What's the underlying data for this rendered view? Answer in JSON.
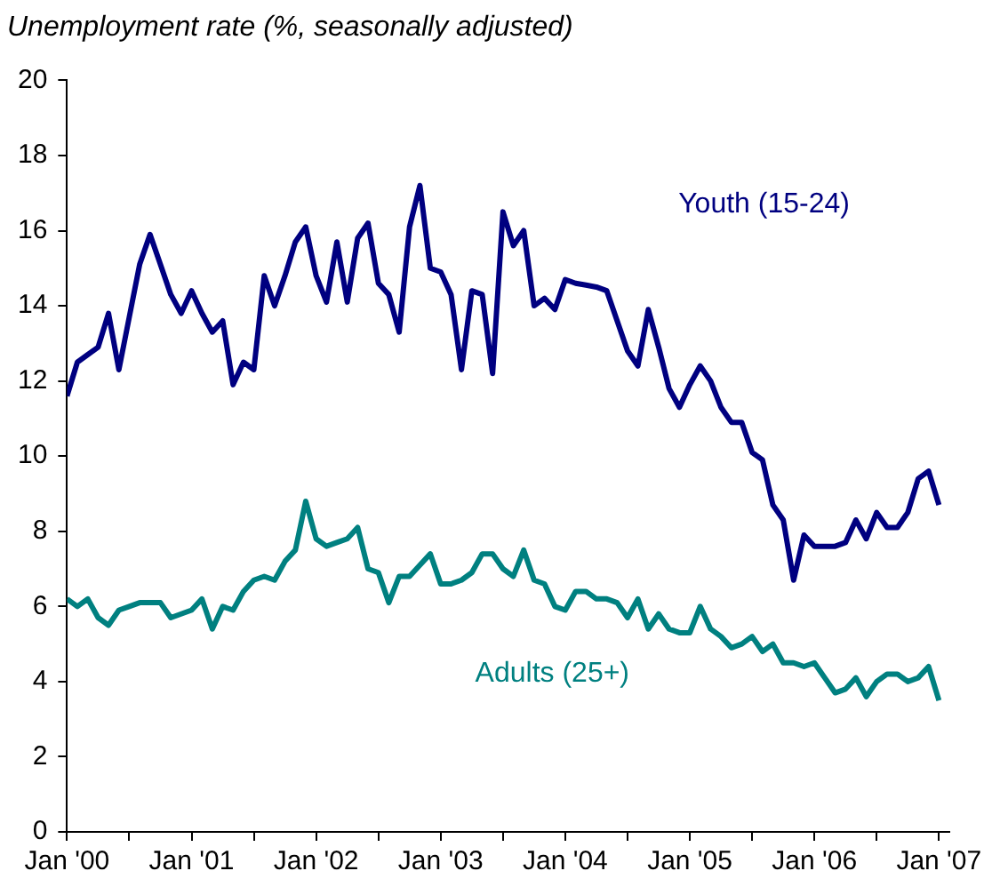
{
  "chart_data": {
    "type": "line",
    "title": "Unemployment rate (%, seasonally adjusted)",
    "x": [
      "2000-01",
      "2000-02",
      "2000-03",
      "2000-04",
      "2000-05",
      "2000-06",
      "2000-07",
      "2000-08",
      "2000-09",
      "2000-10",
      "2000-11",
      "2000-12",
      "2001-01",
      "2001-02",
      "2001-03",
      "2001-04",
      "2001-05",
      "2001-06",
      "2001-07",
      "2001-08",
      "2001-09",
      "2001-10",
      "2001-11",
      "2001-12",
      "2002-01",
      "2002-02",
      "2002-03",
      "2002-04",
      "2002-05",
      "2002-06",
      "2002-07",
      "2002-08",
      "2002-09",
      "2002-10",
      "2002-11",
      "2002-12",
      "2003-01",
      "2003-02",
      "2003-03",
      "2003-04",
      "2003-05",
      "2003-06",
      "2003-07",
      "2003-08",
      "2003-09",
      "2003-10",
      "2003-11",
      "2003-12",
      "2004-01",
      "2004-02",
      "2004-03",
      "2004-04",
      "2004-05",
      "2004-06",
      "2004-07",
      "2004-08",
      "2004-09",
      "2004-10",
      "2004-11",
      "2004-12",
      "2005-01",
      "2005-02",
      "2005-03",
      "2005-04",
      "2005-05",
      "2005-06",
      "2005-07",
      "2005-08",
      "2005-09",
      "2005-10",
      "2005-11",
      "2005-12",
      "2006-01",
      "2006-02",
      "2006-03",
      "2006-04",
      "2006-05",
      "2006-06",
      "2006-07",
      "2006-08",
      "2006-09",
      "2006-10",
      "2006-11",
      "2006-12",
      "2007-01"
    ],
    "series": [
      {
        "name": "Youth (15-24)",
        "color": "#000080",
        "values": [
          11.6,
          12.5,
          12.7,
          12.9,
          13.8,
          12.3,
          13.7,
          15.1,
          15.9,
          15.1,
          14.3,
          13.8,
          14.4,
          13.8,
          13.3,
          13.6,
          11.9,
          12.5,
          12.3,
          14.8,
          14.0,
          14.8,
          15.7,
          16.1,
          14.8,
          14.1,
          15.7,
          14.1,
          15.8,
          16.2,
          14.6,
          14.3,
          13.3,
          16.1,
          17.2,
          15.0,
          14.9,
          14.3,
          12.3,
          14.4,
          14.3,
          12.2,
          16.5,
          15.6,
          16.0,
          14.0,
          14.2,
          13.9,
          14.7,
          14.6,
          14.55,
          14.5,
          14.4,
          13.6,
          12.8,
          12.4,
          13.9,
          12.9,
          11.8,
          11.3,
          11.9,
          12.4,
          12.0,
          11.3,
          10.9,
          10.9,
          10.1,
          9.9,
          8.7,
          8.3,
          6.7,
          7.9,
          7.6,
          7.6,
          7.6,
          7.7,
          8.3,
          7.8,
          8.5,
          8.1,
          8.1,
          8.5,
          9.4,
          9.6,
          8.7
        ]
      },
      {
        "name": "Adults (25+)",
        "color": "#008080",
        "values": [
          6.2,
          6.0,
          6.2,
          5.7,
          5.5,
          5.9,
          6.0,
          6.1,
          6.1,
          6.1,
          5.7,
          5.8,
          5.9,
          6.2,
          5.4,
          6.0,
          5.9,
          6.4,
          6.7,
          6.8,
          6.7,
          7.2,
          7.5,
          8.8,
          7.8,
          7.6,
          7.7,
          7.8,
          8.1,
          7.0,
          6.9,
          6.1,
          6.8,
          6.8,
          7.1,
          7.4,
          6.6,
          6.6,
          6.7,
          6.9,
          7.4,
          7.4,
          7.0,
          6.8,
          7.5,
          6.7,
          6.6,
          6.0,
          5.9,
          6.4,
          6.4,
          6.2,
          6.2,
          6.1,
          5.7,
          6.2,
          5.4,
          5.8,
          5.4,
          5.3,
          5.3,
          6.0,
          5.4,
          5.2,
          4.9,
          5.0,
          5.2,
          4.8,
          5.0,
          4.5,
          4.5,
          4.4,
          4.5,
          4.1,
          3.7,
          3.8,
          4.1,
          3.6,
          4.0,
          4.2,
          4.2,
          4.0,
          4.1,
          4.4,
          3.5
        ]
      }
    ],
    "xlim": [
      "2000-01",
      "2007-02"
    ],
    "xticks": [
      {
        "value": "2000-01",
        "label": "Jan '00"
      },
      {
        "value": "2000-07",
        "label": null
      },
      {
        "value": "2001-01",
        "label": "Jan '01"
      },
      {
        "value": "2001-07",
        "label": null
      },
      {
        "value": "2002-01",
        "label": "Jan '02"
      },
      {
        "value": "2002-07",
        "label": null
      },
      {
        "value": "2003-01",
        "label": "Jan '03"
      },
      {
        "value": "2003-07",
        "label": null
      },
      {
        "value": "2004-01",
        "label": "Jan '04"
      },
      {
        "value": "2004-07",
        "label": null
      },
      {
        "value": "2005-01",
        "label": "Jan '05"
      },
      {
        "value": "2005-07",
        "label": null
      },
      {
        "value": "2006-01",
        "label": "Jan '06"
      },
      {
        "value": "2006-07",
        "label": null
      },
      {
        "value": "2007-01",
        "label": "Jan '07"
      }
    ],
    "ylim": [
      0,
      20
    ],
    "yticks": [
      0,
      2,
      4,
      6,
      8,
      10,
      12,
      14,
      16,
      18,
      20
    ],
    "grid": false,
    "legend": false,
    "marker": "none",
    "line_style": "solid"
  }
}
